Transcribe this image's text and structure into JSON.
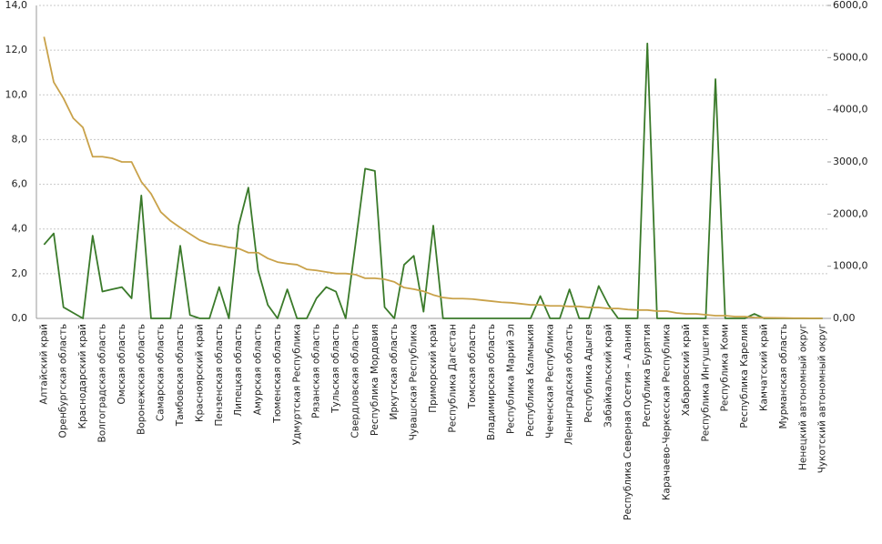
{
  "chart_data": {
    "type": "line",
    "categories": [
      "Алтайский край",
      null,
      "Оренбургская область",
      null,
      "Краснодарский край",
      null,
      "Волгоградская область",
      null,
      "Омская область",
      null,
      "Воронежская область",
      null,
      "Самарская область",
      null,
      "Тамбовская область",
      null,
      "Красноярский край",
      null,
      "Пензенская область",
      null,
      "Липецкая область",
      null,
      "Амурская область",
      null,
      "Тюменская область",
      null,
      "Удмуртская Республика",
      null,
      "Рязанская область",
      null,
      "Тульская область",
      null,
      "Свердловская область",
      null,
      "Республика Мордовия",
      null,
      "Иркутская область",
      null,
      "Чувашская Республика",
      null,
      "Приморский край",
      null,
      "Республика Дагестан",
      null,
      "Томская область",
      null,
      "Владимирская область",
      null,
      "Республика Марий Эл",
      null,
      "Республика Калмыкия",
      null,
      "Чеченская Республика",
      null,
      "Ленинградская область",
      null,
      "Республика Адыгея",
      null,
      "Забайкальский край",
      null,
      "Республика Северная  Осетия – Алания",
      null,
      "Республика Бурятия",
      null,
      "Карачаево-Черкесская  Республика",
      null,
      "Хабаровский край",
      null,
      "Республика Ингушетия",
      null,
      "Республика Коми",
      null,
      "Республика Карелия",
      null,
      "Камчатский край",
      null,
      "Мурманская область",
      null,
      "Ненецкий автономный округ",
      null,
      "Чукотский автономный округ"
    ],
    "series": [
      {
        "color": "#3a7a2a",
        "values": [
          3.3,
          3.8,
          0.5,
          0.25,
          0,
          3.7,
          1.2,
          1.3,
          1.4,
          0.9,
          5.5,
          0,
          0,
          0,
          3.25,
          0.15,
          0,
          0,
          1.4,
          0,
          4.15,
          5.85,
          2.15,
          0.6,
          0,
          1.3,
          0,
          0,
          0.9,
          1.4,
          1.2,
          0,
          3.3,
          6.7,
          6.6,
          0.5,
          0,
          2.4,
          2.8,
          0.3,
          4.15,
          0,
          0,
          0,
          0,
          0,
          0,
          0,
          0,
          0,
          0,
          1.0,
          0,
          0,
          1.3,
          0,
          0,
          1.45,
          0.6,
          0,
          0,
          0,
          12.3,
          0,
          0,
          0,
          0,
          0,
          0,
          10.7,
          0,
          0,
          0,
          0.2,
          0,
          0,
          0,
          0,
          0,
          0,
          0
        ]
      },
      {
        "color": "#c9a24a",
        "axis": "y2",
        "values": [
          5400,
          4530,
          4220,
          3840,
          3660,
          3100,
          3100,
          3070,
          3000,
          3000,
          2620,
          2390,
          2040,
          1870,
          1740,
          1620,
          1500,
          1430,
          1400,
          1360,
          1340,
          1260,
          1260,
          1150,
          1080,
          1050,
          1030,
          940,
          920,
          890,
          860,
          860,
          840,
          770,
          770,
          750,
          700,
          590,
          560,
          520,
          450,
          400,
          380,
          380,
          370,
          350,
          330,
          310,
          300,
          280,
          260,
          260,
          240,
          240,
          230,
          230,
          210,
          210,
          190,
          190,
          170,
          160,
          160,
          140,
          140,
          105,
          87,
          87,
          70,
          52,
          52,
          35,
          35,
          17,
          12,
          10,
          8,
          5,
          3,
          2,
          0
        ]
      }
    ],
    "ylim": [
      0,
      14
    ],
    "yticks": [
      {
        "value": 0,
        "label": "0,0"
      },
      {
        "value": 2,
        "label": "2,0"
      },
      {
        "value": 4,
        "label": "4,0"
      },
      {
        "value": 6,
        "label": "6,0"
      },
      {
        "value": 8,
        "label": "8,0"
      },
      {
        "value": 10,
        "label": "10,0"
      },
      {
        "value": 12,
        "label": "12,0"
      },
      {
        "value": 14,
        "label": "14,0"
      }
    ],
    "y2lim": [
      0,
      6000
    ],
    "y2ticks": [
      {
        "value": 0,
        "label": "0,00"
      },
      {
        "value": 1000,
        "label": "1000,0"
      },
      {
        "value": 2000,
        "label": "2000,0"
      },
      {
        "value": 3000,
        "label": "3000,0"
      },
      {
        "value": 4000,
        "label": "4000,0"
      },
      {
        "value": 5000,
        "label": "5000,0"
      },
      {
        "value": 6000,
        "label": "6000,0"
      }
    ],
    "grid": true
  }
}
